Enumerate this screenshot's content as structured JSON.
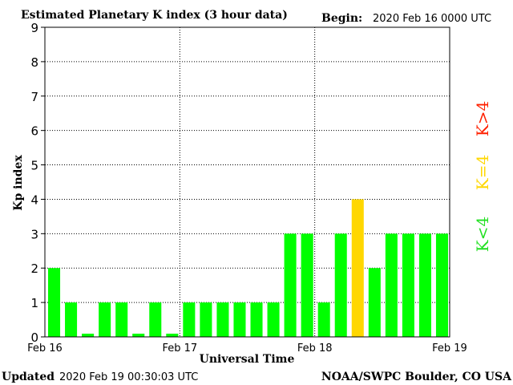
{
  "header": {
    "title": "Estimated Planetary K index (3 hour data)",
    "begin_label": "Begin:",
    "begin_value": "2020 Feb 16 0000 UTC"
  },
  "footer": {
    "updated_label": "Updated",
    "updated_value": "2020 Feb 19 00:30:03 UTC",
    "credit": "NOAA/SWPC Boulder, CO USA"
  },
  "legend": {
    "high": "K>4",
    "equal": "K=4",
    "low": "K<4"
  },
  "colors": {
    "low": "#00ff00",
    "equal": "#ffd700",
    "high": "#ff2000",
    "grid": "#000000"
  },
  "chart_data": {
    "type": "bar",
    "title": "Estimated Planetary K index (3 hour data)",
    "xlabel": "Universal Time",
    "ylabel": "Kp index",
    "ylim": [
      0,
      9
    ],
    "yticks": [
      "0",
      "1",
      "2",
      "3",
      "4",
      "5",
      "6",
      "7",
      "8",
      "9"
    ],
    "xticks": [
      "Feb 16",
      "Feb 17",
      "Feb 18",
      "Feb 19"
    ],
    "interval_hours": 3,
    "values": [
      2,
      1,
      0,
      1,
      1,
      0,
      1,
      0,
      1,
      1,
      1,
      1,
      1,
      1,
      3,
      3,
      1,
      3,
      4,
      2,
      3,
      3,
      3,
      3
    ],
    "grid": true
  }
}
